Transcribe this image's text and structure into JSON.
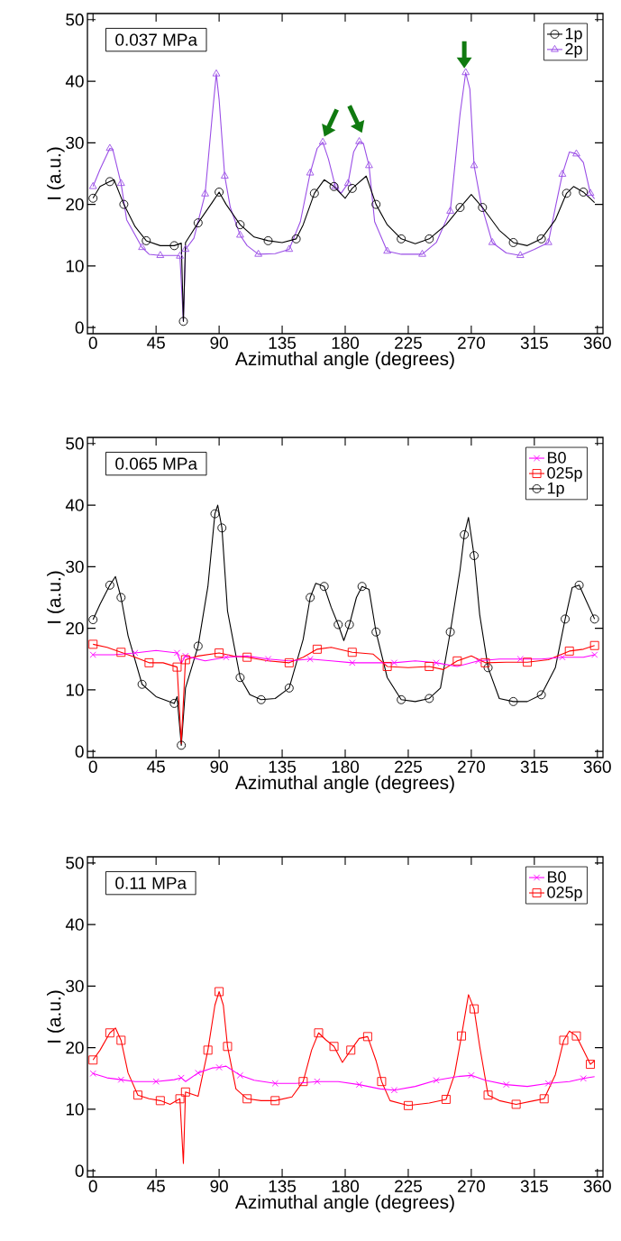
{
  "chart_data": [
    {
      "type": "line",
      "xlabel": "Azimuthal angle (degrees)",
      "ylabel": "I (a.u.)",
      "xlim": [
        -4,
        364
      ],
      "ylim": [
        -1,
        51
      ],
      "xticks": [
        0,
        45,
        90,
        135,
        180,
        225,
        270,
        315,
        360
      ],
      "yticks": [
        0,
        10,
        20,
        30,
        40,
        50
      ],
      "grid": false,
      "legend": "top right",
      "line_style": "solid",
      "annotations": [
        "0.037 MPa"
      ],
      "series": [
        {
          "name": "1p",
          "color": "#000000",
          "marker": "circle",
          "x": [
            0,
            5,
            12,
            15,
            22,
            30,
            38,
            48,
            58,
            63,
            64.5,
            66,
            75,
            85,
            90,
            95,
            105,
            115,
            125,
            135,
            145,
            150,
            158,
            165,
            172,
            180,
            185,
            195,
            202,
            210,
            220,
            230,
            240,
            252,
            262,
            270,
            278,
            290,
            300,
            310,
            320,
            330,
            338,
            343,
            350,
            358
          ],
          "values": [
            21,
            22.9,
            23.7,
            24,
            20,
            16.4,
            14.1,
            13.3,
            13.3,
            13.7,
            1,
            13.8,
            17,
            20.3,
            22,
            20,
            16.7,
            14.7,
            14.1,
            13.8,
            14.4,
            16.7,
            21.8,
            24,
            22.9,
            21,
            22.6,
            24.6,
            20,
            16.7,
            14.4,
            13.6,
            14.4,
            16.7,
            19.5,
            21.6,
            19.5,
            15.8,
            13.8,
            13.3,
            14.4,
            17.5,
            21.8,
            22.9,
            22,
            20.3
          ]
        },
        {
          "name": "2p",
          "color": "#9a4ee6",
          "marker": "triangle",
          "x": [
            0,
            5,
            12,
            14,
            20,
            24,
            35,
            40,
            48,
            60,
            62,
            64.5,
            66,
            72,
            80,
            85,
            88,
            90,
            94,
            98,
            105,
            110,
            118,
            130,
            140,
            148,
            155,
            160,
            164,
            168,
            173,
            177,
            182,
            186,
            190,
            193,
            197,
            201,
            210,
            220,
            235,
            245,
            255,
            262,
            266,
            269,
            272,
            277,
            285,
            295,
            305,
            315,
            325,
            330,
            335,
            340,
            345,
            350,
            355,
            358
          ],
          "values": [
            22.9,
            25.7,
            29.1,
            29,
            23.4,
            17.5,
            13,
            11.9,
            11.7,
            11.7,
            11.6,
            1,
            12.7,
            14.5,
            21.7,
            34.2,
            41.2,
            37,
            24.6,
            19.5,
            15,
            13.3,
            11.9,
            12,
            12.7,
            17.2,
            25.1,
            29.1,
            30.1,
            27.4,
            22.9,
            21.8,
            23.4,
            28.5,
            30.2,
            29.9,
            26.3,
            17.2,
            12.4,
            11.9,
            11.9,
            13.8,
            18.9,
            34.7,
            41.4,
            38.7,
            26.3,
            20.1,
            13.8,
            12.1,
            11.7,
            12.7,
            13.8,
            19.5,
            24.9,
            28.5,
            28.2,
            26.8,
            21.8,
            20.9
          ]
        }
      ]
    },
    {
      "type": "line",
      "xlabel": "Azimuthal angle (degrees)",
      "ylabel": "I (a.u.)",
      "xlim": [
        -4,
        364
      ],
      "ylim": [
        -1,
        51
      ],
      "xticks": [
        0,
        45,
        90,
        135,
        180,
        225,
        270,
        315,
        360
      ],
      "yticks": [
        0,
        10,
        20,
        30,
        40,
        50
      ],
      "grid": false,
      "legend": "top right",
      "line_style": "solid",
      "annotations": [
        "0.065 MPa"
      ],
      "series": [
        {
          "name": "B0",
          "color": "#ff00ff",
          "marker": "cross",
          "x": [
            0,
            15,
            30,
            45,
            60,
            63,
            66,
            80,
            95,
            110,
            125,
            140,
            155,
            170,
            185,
            200,
            215,
            230,
            245,
            260,
            275,
            290,
            305,
            320,
            335,
            350,
            358
          ],
          "values": [
            15.7,
            15.7,
            16,
            16.4,
            16,
            14.3,
            15.5,
            14.7,
            15.3,
            15.5,
            15,
            14.7,
            15,
            14.7,
            14.4,
            14.4,
            14.4,
            14.7,
            14.4,
            13.8,
            14.7,
            15,
            15,
            15,
            15.3,
            15.3,
            15.7
          ]
        },
        {
          "name": "025p",
          "color": "#ff0000",
          "marker": "square",
          "x": [
            0,
            10,
            20,
            30,
            40,
            50,
            60,
            63,
            66,
            75,
            90,
            100,
            110,
            125,
            140,
            150,
            160,
            170,
            185,
            200,
            210,
            225,
            240,
            250,
            260,
            270,
            280,
            295,
            310,
            325,
            340,
            350,
            358
          ],
          "values": [
            17.4,
            16.9,
            16.1,
            15.3,
            14.4,
            14.4,
            13.7,
            1.3,
            14.9,
            15.5,
            16,
            15.5,
            15.3,
            14.7,
            14.4,
            15.3,
            16.6,
            16.9,
            16.1,
            15.8,
            13.8,
            13.6,
            13.8,
            13.3,
            14.7,
            15.5,
            14.4,
            14.5,
            14.5,
            14.9,
            16.3,
            16.6,
            17.2
          ]
        },
        {
          "name": "1p",
          "color": "#000000",
          "marker": "circle",
          "x": [
            0,
            5,
            12,
            16,
            20,
            25,
            35,
            45,
            58,
            60,
            63,
            66,
            75,
            82,
            87,
            89,
            92,
            96,
            105,
            112,
            120,
            130,
            140,
            150,
            155,
            159,
            165,
            170,
            175,
            179,
            183,
            188,
            192,
            197,
            202,
            210,
            220,
            230,
            240,
            248,
            255,
            262,
            265,
            268,
            272,
            276,
            282,
            290,
            300,
            310,
            320,
            330,
            337,
            342,
            347,
            352,
            358
          ],
          "values": [
            21.4,
            23.9,
            27,
            28.4,
            25,
            18.8,
            10.9,
            8.9,
            7.8,
            8.9,
            1,
            10.3,
            17.1,
            26.8,
            38.6,
            40,
            36.3,
            22.8,
            12,
            9.2,
            8.4,
            8.6,
            10.3,
            18.2,
            25,
            27.3,
            26.8,
            23.4,
            20.6,
            18,
            20.6,
            25,
            26.8,
            26.3,
            19.4,
            12,
            8.4,
            8.1,
            8.6,
            10.3,
            19.4,
            29.5,
            35.2,
            38,
            31.8,
            22.2,
            13.6,
            8.6,
            8.1,
            8.1,
            9.2,
            13.6,
            21.5,
            26.6,
            27,
            24.5,
            21.5
          ]
        }
      ]
    },
    {
      "type": "line",
      "xlabel": "Azimuthal angle (degrees)",
      "ylabel": "I (a.u.)",
      "xlim": [
        -4,
        364
      ],
      "ylim": [
        -1,
        51
      ],
      "xticks": [
        0,
        45,
        90,
        135,
        180,
        225,
        270,
        315,
        360
      ],
      "yticks": [
        0,
        10,
        20,
        30,
        40,
        50
      ],
      "grid": false,
      "legend": "top right",
      "line_style": "solid",
      "annotations": [
        "0.11 MPa"
      ],
      "series": [
        {
          "name": "B0",
          "color": "#ff00ff",
          "marker": "cross",
          "x": [
            0,
            10,
            20,
            30,
            45,
            58,
            63,
            66,
            75,
            85,
            90,
            95,
            105,
            115,
            130,
            145,
            160,
            175,
            190,
            205,
            215,
            230,
            245,
            260,
            270,
            280,
            295,
            310,
            325,
            340,
            350,
            358
          ],
          "values": [
            15.8,
            15.1,
            14.8,
            14.5,
            14.5,
            14.8,
            15.1,
            14.5,
            15.9,
            16.7,
            16.8,
            17,
            15.5,
            14.7,
            14.2,
            14.2,
            14.5,
            14.5,
            14,
            13.3,
            13.1,
            13.7,
            14.7,
            15.3,
            15.5,
            14.7,
            14,
            13.7,
            14.2,
            14.5,
            15,
            15.3
          ]
        },
        {
          "name": "025p",
          "color": "#ff0000",
          "marker": "square",
          "x": [
            0,
            5,
            12,
            16,
            20,
            25,
            32,
            40,
            48,
            55,
            62,
            64.5,
            66,
            75,
            82,
            87,
            90,
            93,
            96,
            102,
            110,
            120,
            130,
            142,
            150,
            156,
            161,
            166,
            172,
            178,
            184,
            190,
            196,
            202,
            206,
            212,
            225,
            240,
            252,
            258,
            263,
            268,
            272,
            276,
            282,
            290,
            302,
            315,
            322,
            330,
            336,
            340,
            345,
            350,
            355,
            358
          ],
          "values": [
            18,
            19.6,
            22.4,
            23.2,
            21.2,
            15.9,
            12.3,
            11.7,
            11.4,
            10.8,
            11.7,
            1.2,
            12.8,
            12.1,
            19.6,
            26.9,
            29.1,
            26.9,
            20.2,
            13.3,
            11.7,
            11.4,
            11.4,
            12,
            14.5,
            19.6,
            22.4,
            21.3,
            20.2,
            17.6,
            19.6,
            21.5,
            21.8,
            17.9,
            14.5,
            11.4,
            10.6,
            11,
            11.6,
            15.6,
            21.9,
            28.6,
            26.3,
            20.2,
            12.3,
            11.4,
            10.8,
            11.4,
            11.7,
            15.6,
            21.2,
            22.7,
            21.9,
            19.6,
            17.3,
            17.9
          ]
        }
      ]
    }
  ]
}
